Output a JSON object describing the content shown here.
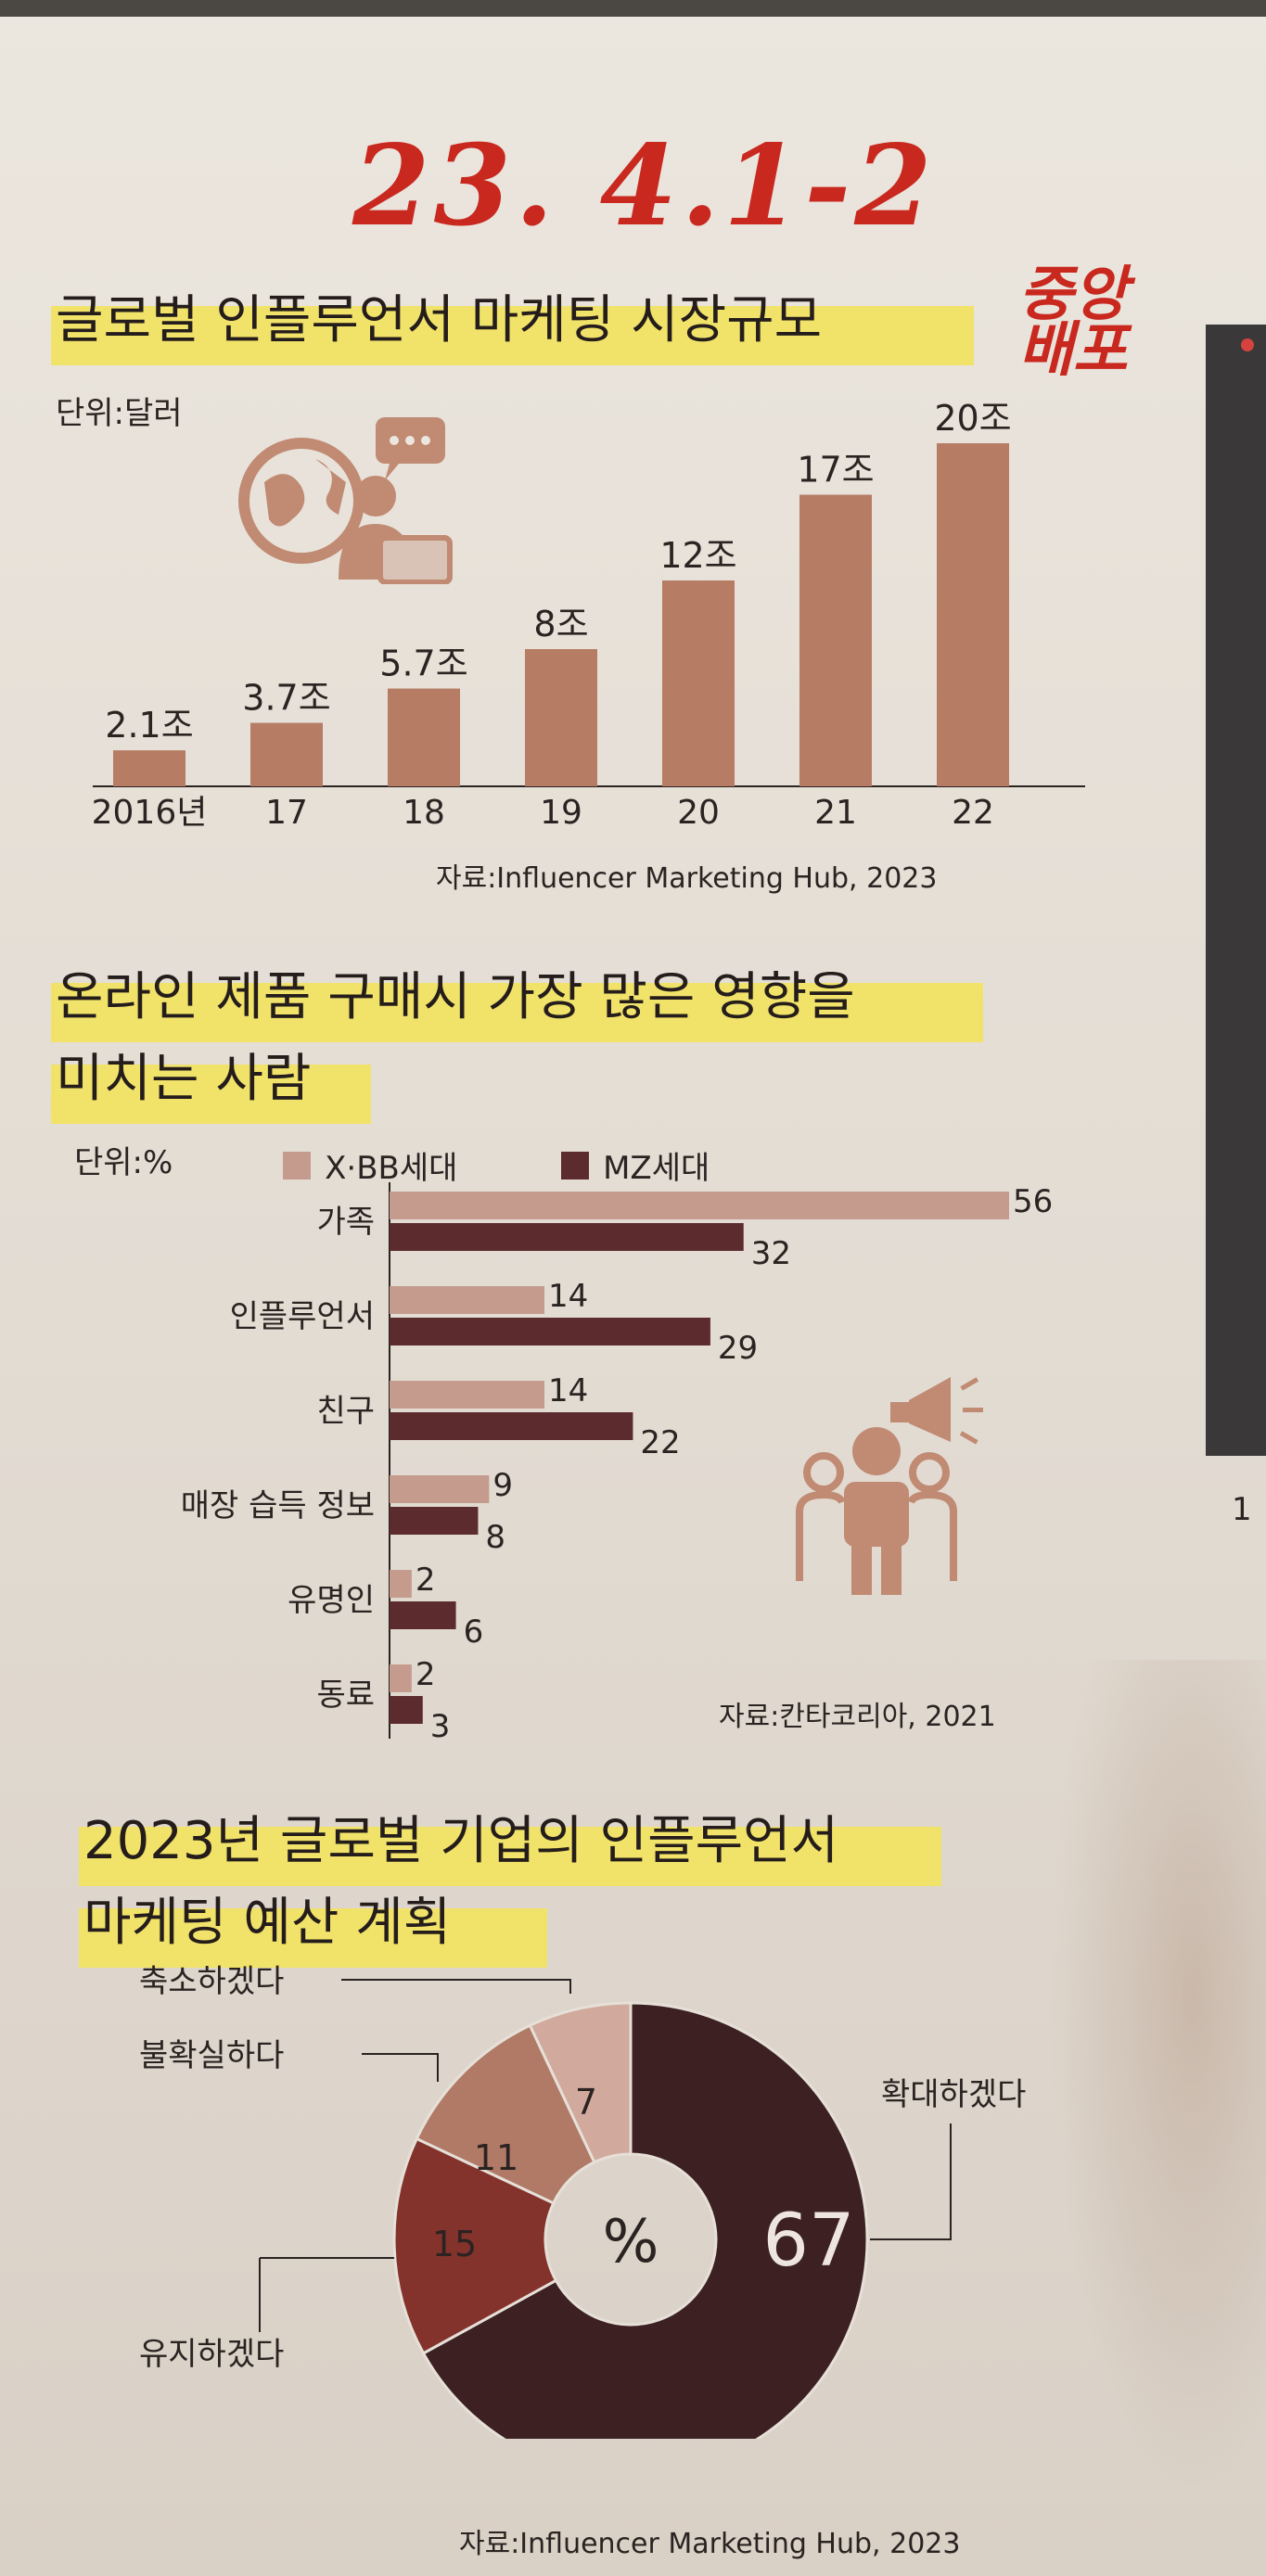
{
  "handwritten_note": {
    "line1": "23. 4.1-2",
    "line2": "중앙",
    "line3": "배포"
  },
  "edge_number": "1",
  "chart_data": [
    {
      "type": "bar",
      "title": "글로벌 인플루언서 마케팅 시장규모",
      "unit": "단위:달러",
      "categories": [
        "2016년",
        "17",
        "18",
        "19",
        "20",
        "21",
        "22"
      ],
      "values": [
        2.1,
        3.7,
        5.7,
        8,
        12,
        17,
        20
      ],
      "value_labels": [
        "2.1조",
        "3.7조",
        "5.7조",
        "8조",
        "12조",
        "17조",
        "20조"
      ],
      "ylim": [
        0,
        20
      ],
      "icon": "globe-chat-icon",
      "colors": {
        "bar": "#b67c64"
      },
      "source": "자료:Influencer Marketing Hub, 2023"
    },
    {
      "type": "bar",
      "orientation": "horizontal",
      "title_lines": [
        "온라인 제품 구매시 가장 많은 영향을",
        "미치는 사람"
      ],
      "unit": "단위:%",
      "categories": [
        "가족",
        "인플루언서",
        "친구",
        "매장 습득 정보",
        "유명인",
        "동료"
      ],
      "series": [
        {
          "name": "X·BB세대",
          "values": [
            56,
            14,
            14,
            9,
            2,
            2
          ],
          "color": "#c59b8d"
        },
        {
          "name": "MZ세대",
          "values": [
            32,
            29,
            22,
            8,
            6,
            3
          ],
          "color": "#5c2b2e"
        }
      ],
      "xlim": [
        0,
        56
      ],
      "icon": "people-megaphone-icon",
      "source": "자료:칸타코리아, 2021"
    },
    {
      "type": "pie",
      "title_lines": [
        "2023년 글로벌 기업의 인플루언서",
        "마케팅 예산 계획"
      ],
      "center_label": "%",
      "labels": [
        "확대하겠다",
        "유지하겠다",
        "불확실하다",
        "축소하겠다"
      ],
      "values": [
        67,
        15,
        11,
        7
      ],
      "colors": [
        "#3c2022",
        "#83332c",
        "#b07a66",
        "#d2a99d"
      ],
      "source": "자료:Influencer Marketing Hub, 2023"
    }
  ]
}
